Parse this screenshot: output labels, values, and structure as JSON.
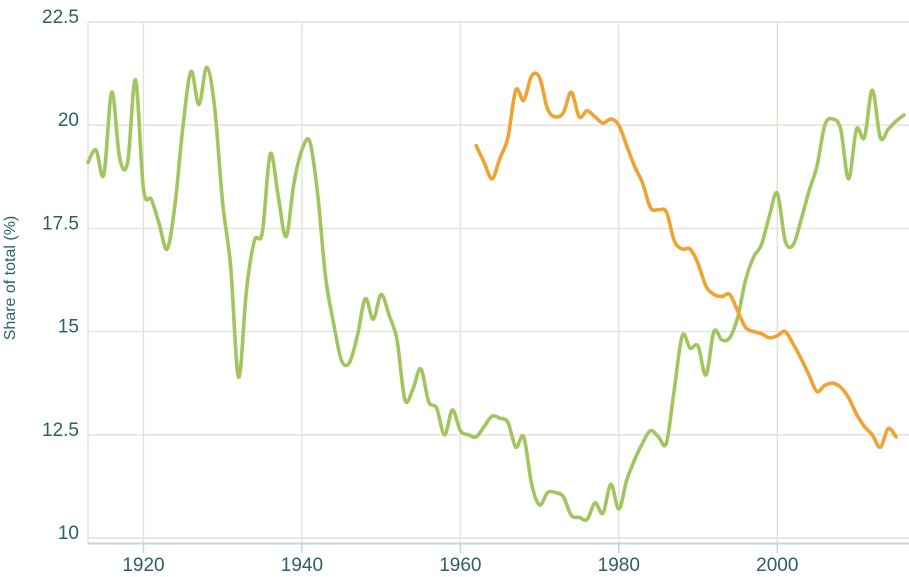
{
  "colors": {
    "grid": "#e4e1d5",
    "axis_line": "#c5d5e3",
    "tick_text": "#2c5f66",
    "green_series": "#a3c55f",
    "orange_series": "#f0a232",
    "background": "#ffffff"
  },
  "chart_data": {
    "type": "line",
    "title": "",
    "xlabel": "",
    "ylabel": "Share of total (%)",
    "grid": true,
    "legend": "none",
    "xlim": [
      1913,
      2016.5
    ],
    "ylim": [
      10,
      22.5
    ],
    "x_ticks": [
      1920,
      1940,
      1960,
      1980,
      2000
    ],
    "x_tick_labels": [
      "1920",
      "1940",
      "1960",
      "1980",
      "2000"
    ],
    "y_ticks": [
      10,
      12.5,
      15,
      17.5,
      20,
      22.5
    ],
    "y_tick_labels": [
      "10",
      "12.5",
      "15",
      "17.5",
      "20",
      "22.5"
    ],
    "series": [
      {
        "name": "green-series",
        "color": "#a3c55f",
        "points": [
          [
            1913,
            19.1
          ],
          [
            1914,
            19.4
          ],
          [
            1915,
            18.8
          ],
          [
            1916,
            20.8
          ],
          [
            1917,
            19.2
          ],
          [
            1918,
            19.1
          ],
          [
            1919,
            21.1
          ],
          [
            1920,
            18.45
          ],
          [
            1921,
            18.2
          ],
          [
            1922,
            17.6
          ],
          [
            1923,
            17.0
          ],
          [
            1924,
            18.1
          ],
          [
            1925,
            20.0
          ],
          [
            1926,
            21.3
          ],
          [
            1927,
            20.5
          ],
          [
            1928,
            21.4
          ],
          [
            1929,
            20.4
          ],
          [
            1930,
            18.1
          ],
          [
            1931,
            16.6
          ],
          [
            1932,
            13.9
          ],
          [
            1933,
            16.0
          ],
          [
            1934,
            17.2
          ],
          [
            1935,
            17.4
          ],
          [
            1936,
            19.3
          ],
          [
            1937,
            18.3
          ],
          [
            1938,
            17.3
          ],
          [
            1939,
            18.6
          ],
          [
            1940,
            19.4
          ],
          [
            1941,
            19.6
          ],
          [
            1942,
            18.3
          ],
          [
            1943,
            16.3
          ],
          [
            1944,
            15.2
          ],
          [
            1945,
            14.3
          ],
          [
            1946,
            14.25
          ],
          [
            1947,
            14.9
          ],
          [
            1948,
            15.8
          ],
          [
            1949,
            15.3
          ],
          [
            1950,
            15.9
          ],
          [
            1951,
            15.4
          ],
          [
            1952,
            14.8
          ],
          [
            1953,
            13.35
          ],
          [
            1954,
            13.6
          ],
          [
            1955,
            14.1
          ],
          [
            1956,
            13.3
          ],
          [
            1957,
            13.15
          ],
          [
            1958,
            12.5
          ],
          [
            1959,
            13.1
          ],
          [
            1960,
            12.6
          ],
          [
            1961,
            12.5
          ],
          [
            1962,
            12.45
          ],
          [
            1963,
            12.7
          ],
          [
            1964,
            12.95
          ],
          [
            1965,
            12.9
          ],
          [
            1966,
            12.8
          ],
          [
            1967,
            12.2
          ],
          [
            1968,
            12.45
          ],
          [
            1969,
            11.3
          ],
          [
            1970,
            10.8
          ],
          [
            1971,
            11.1
          ],
          [
            1972,
            11.1
          ],
          [
            1973,
            11.0
          ],
          [
            1974,
            10.55
          ],
          [
            1975,
            10.5
          ],
          [
            1976,
            10.45
          ],
          [
            1977,
            10.85
          ],
          [
            1978,
            10.6
          ],
          [
            1979,
            11.3
          ],
          [
            1980,
            10.7
          ],
          [
            1981,
            11.4
          ],
          [
            1982,
            11.9
          ],
          [
            1983,
            12.3
          ],
          [
            1984,
            12.6
          ],
          [
            1985,
            12.45
          ],
          [
            1986,
            12.3
          ],
          [
            1987,
            13.6
          ],
          [
            1988,
            14.9
          ],
          [
            1989,
            14.6
          ],
          [
            1990,
            14.65
          ],
          [
            1991,
            13.95
          ],
          [
            1992,
            15.0
          ],
          [
            1993,
            14.8
          ],
          [
            1994,
            14.85
          ],
          [
            1995,
            15.35
          ],
          [
            1996,
            16.25
          ],
          [
            1997,
            16.8
          ],
          [
            1998,
            17.1
          ],
          [
            1999,
            17.8
          ],
          [
            2000,
            18.35
          ],
          [
            2001,
            17.2
          ],
          [
            2002,
            17.1
          ],
          [
            2003,
            17.7
          ],
          [
            2004,
            18.4
          ],
          [
            2005,
            19.0
          ],
          [
            2006,
            20.0
          ],
          [
            2007,
            20.15
          ],
          [
            2008,
            19.9
          ],
          [
            2009,
            18.7
          ],
          [
            2010,
            19.9
          ],
          [
            2011,
            19.7
          ],
          [
            2012,
            20.85
          ],
          [
            2013,
            19.7
          ],
          [
            2014,
            19.9
          ],
          [
            2015,
            20.1
          ],
          [
            2016,
            20.25
          ]
        ]
      },
      {
        "name": "orange-series",
        "color": "#f0a232",
        "points": [
          [
            1962,
            19.5
          ],
          [
            1963,
            19.1
          ],
          [
            1964,
            18.7
          ],
          [
            1965,
            19.2
          ],
          [
            1966,
            19.7
          ],
          [
            1967,
            20.85
          ],
          [
            1968,
            20.6
          ],
          [
            1969,
            21.2
          ],
          [
            1970,
            21.15
          ],
          [
            1971,
            20.4
          ],
          [
            1972,
            20.2
          ],
          [
            1973,
            20.3
          ],
          [
            1974,
            20.8
          ],
          [
            1975,
            20.2
          ],
          [
            1976,
            20.35
          ],
          [
            1977,
            20.2
          ],
          [
            1978,
            20.05
          ],
          [
            1979,
            20.15
          ],
          [
            1980,
            20.0
          ],
          [
            1981,
            19.5
          ],
          [
            1982,
            19.0
          ],
          [
            1983,
            18.6
          ],
          [
            1984,
            18.0
          ],
          [
            1985,
            17.95
          ],
          [
            1986,
            17.9
          ],
          [
            1987,
            17.2
          ],
          [
            1988,
            17.0
          ],
          [
            1989,
            17.0
          ],
          [
            1990,
            16.65
          ],
          [
            1991,
            16.1
          ],
          [
            1992,
            15.9
          ],
          [
            1993,
            15.85
          ],
          [
            1994,
            15.9
          ],
          [
            1995,
            15.5
          ],
          [
            1996,
            15.1
          ],
          [
            1997,
            15.0
          ],
          [
            1998,
            14.95
          ],
          [
            1999,
            14.85
          ],
          [
            2000,
            14.9
          ],
          [
            2001,
            15.0
          ],
          [
            2002,
            14.7
          ],
          [
            2003,
            14.35
          ],
          [
            2004,
            13.95
          ],
          [
            2005,
            13.55
          ],
          [
            2006,
            13.7
          ],
          [
            2007,
            13.75
          ],
          [
            2008,
            13.65
          ],
          [
            2009,
            13.4
          ],
          [
            2010,
            13.0
          ],
          [
            2011,
            12.7
          ],
          [
            2012,
            12.5
          ],
          [
            2013,
            12.2
          ],
          [
            2014,
            12.65
          ],
          [
            2015,
            12.45
          ]
        ]
      }
    ]
  }
}
